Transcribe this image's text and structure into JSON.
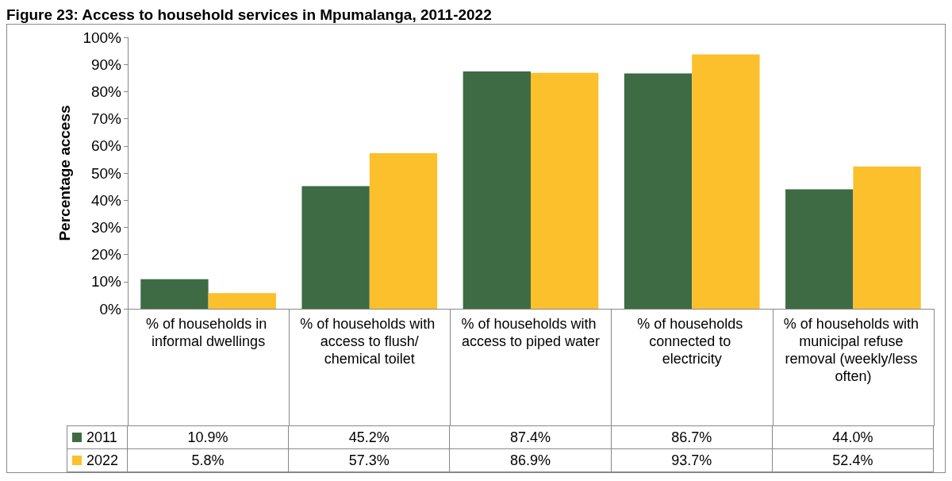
{
  "chart_data": {
    "type": "bar",
    "title": "Figure 23: Access to household services in Mpumalanga, 2011-2022",
    "ylabel": "Percentage access",
    "categories": [
      "% of households in informal dwellings",
      "% of households with access to flush/chemical toilet",
      "% of households with access to piped water",
      "% of households connected to electricity",
      "% of households with municipal refuse removal (weekly/less often)"
    ],
    "series": [
      {
        "name": "2011",
        "color": "#3e6b44",
        "values": [
          10.9,
          45.2,
          87.4,
          86.7,
          44.0
        ],
        "value_labels": [
          "10.9%",
          "45.2%",
          "87.4%",
          "86.7%",
          "44.0%"
        ]
      },
      {
        "name": "2022",
        "color": "#fcc02c",
        "values": [
          5.8,
          57.3,
          86.9,
          93.7,
          52.4
        ],
        "value_labels": [
          "5.8%",
          "57.3%",
          "86.9%",
          "93.7%",
          "52.4%"
        ]
      }
    ],
    "ylim": [
      0,
      100
    ],
    "yticks": [
      {
        "value": 0,
        "label": "0%"
      },
      {
        "value": 10,
        "label": "10%"
      },
      {
        "value": 20,
        "label": "20%"
      },
      {
        "value": 30,
        "label": "30%"
      },
      {
        "value": 40,
        "label": "40%"
      },
      {
        "value": 50,
        "label": "50%"
      },
      {
        "value": 60,
        "label": "60%"
      },
      {
        "value": 70,
        "label": "70%"
      },
      {
        "value": 80,
        "label": "80%"
      },
      {
        "value": 90,
        "label": "90%"
      },
      {
        "value": 100,
        "label": "100%"
      }
    ],
    "grid": false,
    "legend": "bottom"
  }
}
